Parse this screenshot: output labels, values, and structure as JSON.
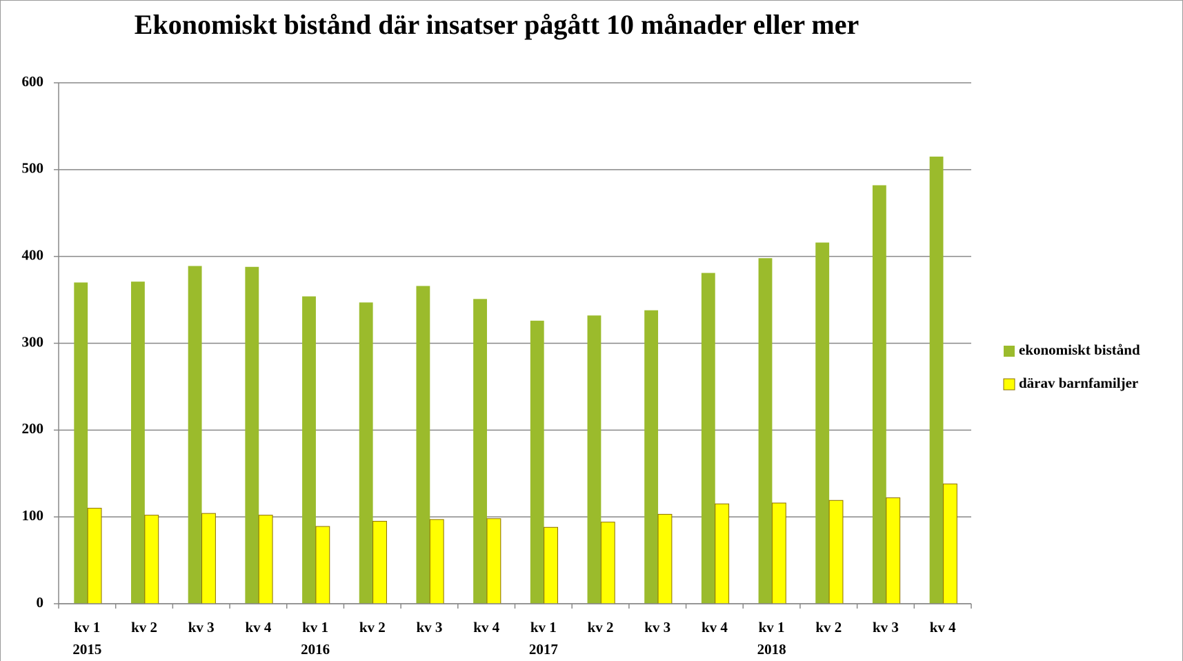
{
  "chart_data": {
    "type": "bar",
    "title": "Ekonomiskt bistånd där insatser pågått 10 månader eller mer",
    "categories": [
      "kv 1",
      "kv 2",
      "kv 3",
      "kv 4",
      "kv 1",
      "kv 2",
      "kv 3",
      "kv 4",
      "kv 1",
      "kv 2",
      "kv 3",
      "kv 4",
      "kv 1",
      "kv 2",
      "kv 3",
      "kv 4"
    ],
    "category_groups": [
      "2015",
      null,
      null,
      null,
      "2016",
      null,
      null,
      null,
      "2017",
      null,
      null,
      null,
      "2018",
      null,
      null,
      null
    ],
    "series": [
      {
        "name": "ekonomiskt bistånd",
        "color": "#9bbb2c",
        "values": [
          370,
          371,
          389,
          388,
          354,
          347,
          366,
          351,
          326,
          332,
          338,
          381,
          398,
          416,
          482,
          515
        ]
      },
      {
        "name": "därav barnfamiljer",
        "color": "#ffff00",
        "values": [
          110,
          102,
          104,
          102,
          89,
          95,
          97,
          98,
          88,
          94,
          103,
          115,
          116,
          119,
          122,
          138
        ]
      }
    ],
    "ylim": [
      0,
      600
    ],
    "yticks": [
      0,
      100,
      200,
      300,
      400,
      500,
      600
    ],
    "grid": true,
    "legend": "right"
  }
}
